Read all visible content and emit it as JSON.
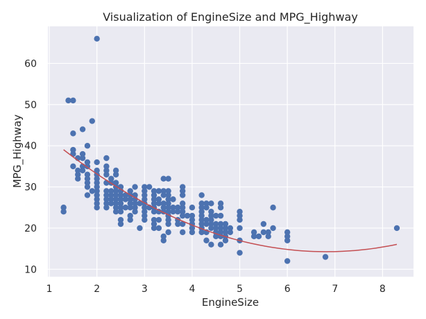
{
  "chart_data": {
    "type": "scatter",
    "title": "Visualization of EngineSize and MPG_Highway",
    "xlabel": "EngineSize",
    "ylabel": "MPG_Highway",
    "xlim": [
      0.97,
      8.65
    ],
    "ylim": [
      8.2,
      69.0
    ],
    "xticks": [
      1,
      2,
      3,
      4,
      5,
      6,
      7,
      8
    ],
    "yticks": [
      10,
      20,
      30,
      40,
      50,
      60
    ],
    "grid": true,
    "colors": {
      "points": "#4c72b0",
      "fit": "#c44e52",
      "plot_bg": "#eaeaf2",
      "grid": "#ffffff"
    },
    "points": [
      [
        1.3,
        25
      ],
      [
        1.3,
        24
      ],
      [
        1.4,
        51
      ],
      [
        1.5,
        51
      ],
      [
        1.5,
        43
      ],
      [
        1.5,
        39
      ],
      [
        1.5,
        38
      ],
      [
        1.5,
        35
      ],
      [
        1.6,
        37
      ],
      [
        1.6,
        34
      ],
      [
        1.6,
        33
      ],
      [
        1.6,
        32
      ],
      [
        1.7,
        44
      ],
      [
        1.7,
        38
      ],
      [
        1.7,
        37
      ],
      [
        1.7,
        35
      ],
      [
        1.7,
        34
      ],
      [
        1.8,
        40
      ],
      [
        1.8,
        36
      ],
      [
        1.8,
        35
      ],
      [
        1.8,
        33
      ],
      [
        1.8,
        32
      ],
      [
        1.8,
        31
      ],
      [
        1.8,
        30
      ],
      [
        1.8,
        28
      ],
      [
        1.9,
        46
      ],
      [
        1.9,
        29
      ],
      [
        2.0,
        66
      ],
      [
        2.0,
        36
      ],
      [
        2.0,
        34
      ],
      [
        2.0,
        33
      ],
      [
        2.0,
        32
      ],
      [
        2.0,
        31
      ],
      [
        2.0,
        30
      ],
      [
        2.0,
        29
      ],
      [
        2.0,
        28
      ],
      [
        2.0,
        27
      ],
      [
        2.0,
        26
      ],
      [
        2.0,
        25
      ],
      [
        2.2,
        37
      ],
      [
        2.2,
        35
      ],
      [
        2.2,
        34
      ],
      [
        2.2,
        33
      ],
      [
        2.2,
        31
      ],
      [
        2.2,
        29
      ],
      [
        2.2,
        28
      ],
      [
        2.2,
        27
      ],
      [
        2.2,
        26
      ],
      [
        2.2,
        25
      ],
      [
        2.3,
        32
      ],
      [
        2.3,
        31
      ],
      [
        2.3,
        29
      ],
      [
        2.3,
        28
      ],
      [
        2.3,
        27
      ],
      [
        2.3,
        26
      ],
      [
        2.4,
        34
      ],
      [
        2.4,
        33
      ],
      [
        2.4,
        31
      ],
      [
        2.4,
        30
      ],
      [
        2.4,
        29
      ],
      [
        2.4,
        28
      ],
      [
        2.4,
        27
      ],
      [
        2.4,
        26
      ],
      [
        2.4,
        25
      ],
      [
        2.4,
        24
      ],
      [
        2.5,
        30
      ],
      [
        2.5,
        29
      ],
      [
        2.5,
        28
      ],
      [
        2.5,
        27
      ],
      [
        2.5,
        26
      ],
      [
        2.5,
        25
      ],
      [
        2.5,
        24
      ],
      [
        2.5,
        22
      ],
      [
        2.5,
        21
      ],
      [
        2.6,
        28
      ],
      [
        2.6,
        27
      ],
      [
        2.6,
        25
      ],
      [
        2.7,
        29
      ],
      [
        2.7,
        28
      ],
      [
        2.7,
        27
      ],
      [
        2.7,
        26
      ],
      [
        2.7,
        25
      ],
      [
        2.7,
        23
      ],
      [
        2.7,
        22
      ],
      [
        2.8,
        30
      ],
      [
        2.8,
        28
      ],
      [
        2.8,
        27
      ],
      [
        2.8,
        26
      ],
      [
        2.8,
        25
      ],
      [
        2.8,
        24
      ],
      [
        2.9,
        26
      ],
      [
        2.9,
        20
      ],
      [
        3.0,
        30
      ],
      [
        3.0,
        29
      ],
      [
        3.0,
        28
      ],
      [
        3.0,
        27
      ],
      [
        3.0,
        26
      ],
      [
        3.0,
        25
      ],
      [
        3.0,
        24
      ],
      [
        3.0,
        23
      ],
      [
        3.0,
        22
      ],
      [
        3.1,
        30
      ],
      [
        3.1,
        25
      ],
      [
        3.2,
        29
      ],
      [
        3.2,
        28
      ],
      [
        3.2,
        27
      ],
      [
        3.2,
        26
      ],
      [
        3.2,
        25
      ],
      [
        3.2,
        24
      ],
      [
        3.2,
        22
      ],
      [
        3.2,
        21
      ],
      [
        3.2,
        20
      ],
      [
        3.3,
        29
      ],
      [
        3.3,
        27
      ],
      [
        3.3,
        26
      ],
      [
        3.3,
        24
      ],
      [
        3.3,
        22
      ],
      [
        3.3,
        20
      ],
      [
        3.4,
        32
      ],
      [
        3.4,
        29
      ],
      [
        3.4,
        28
      ],
      [
        3.4,
        26
      ],
      [
        3.4,
        25
      ],
      [
        3.4,
        24
      ],
      [
        3.4,
        18
      ],
      [
        3.4,
        17
      ],
      [
        3.5,
        32
      ],
      [
        3.5,
        29
      ],
      [
        3.5,
        28
      ],
      [
        3.5,
        27
      ],
      [
        3.5,
        26
      ],
      [
        3.5,
        25
      ],
      [
        3.5,
        24
      ],
      [
        3.5,
        23
      ],
      [
        3.5,
        22
      ],
      [
        3.5,
        21
      ],
      [
        3.5,
        19
      ],
      [
        3.6,
        27
      ],
      [
        3.6,
        25
      ],
      [
        3.6,
        24
      ],
      [
        3.7,
        25
      ],
      [
        3.7,
        24
      ],
      [
        3.7,
        22
      ],
      [
        3.7,
        21
      ],
      [
        3.8,
        30
      ],
      [
        3.8,
        29
      ],
      [
        3.8,
        28
      ],
      [
        3.8,
        26
      ],
      [
        3.8,
        25
      ],
      [
        3.8,
        24
      ],
      [
        3.8,
        23
      ],
      [
        3.8,
        21
      ],
      [
        3.8,
        19
      ],
      [
        3.9,
        23
      ],
      [
        4.0,
        25
      ],
      [
        4.0,
        23
      ],
      [
        4.0,
        22
      ],
      [
        4.0,
        21
      ],
      [
        4.0,
        20
      ],
      [
        4.0,
        19
      ],
      [
        4.2,
        28
      ],
      [
        4.2,
        26
      ],
      [
        4.2,
        25
      ],
      [
        4.2,
        24
      ],
      [
        4.2,
        23
      ],
      [
        4.2,
        22
      ],
      [
        4.2,
        21
      ],
      [
        4.2,
        20
      ],
      [
        4.2,
        19
      ],
      [
        4.3,
        26
      ],
      [
        4.3,
        25
      ],
      [
        4.3,
        22
      ],
      [
        4.3,
        21
      ],
      [
        4.3,
        19
      ],
      [
        4.3,
        17
      ],
      [
        4.4,
        26
      ],
      [
        4.4,
        24
      ],
      [
        4.4,
        23
      ],
      [
        4.4,
        22
      ],
      [
        4.4,
        21
      ],
      [
        4.4,
        20
      ],
      [
        4.4,
        16
      ],
      [
        4.5,
        23
      ],
      [
        4.5,
        21
      ],
      [
        4.5,
        20
      ],
      [
        4.5,
        19
      ],
      [
        4.5,
        18
      ],
      [
        4.6,
        26
      ],
      [
        4.6,
        25
      ],
      [
        4.6,
        23
      ],
      [
        4.6,
        21
      ],
      [
        4.6,
        20
      ],
      [
        4.6,
        19
      ],
      [
        4.6,
        18
      ],
      [
        4.6,
        16
      ],
      [
        4.7,
        21
      ],
      [
        4.7,
        20
      ],
      [
        4.7,
        19
      ],
      [
        4.7,
        18
      ],
      [
        4.7,
        17
      ],
      [
        4.8,
        20
      ],
      [
        4.8,
        19
      ],
      [
        5.0,
        24
      ],
      [
        5.0,
        23
      ],
      [
        5.0,
        22
      ],
      [
        5.0,
        20
      ],
      [
        5.0,
        17
      ],
      [
        5.0,
        14
      ],
      [
        5.3,
        19
      ],
      [
        5.3,
        18
      ],
      [
        5.4,
        18
      ],
      [
        5.5,
        21
      ],
      [
        5.5,
        19
      ],
      [
        5.6,
        19
      ],
      [
        5.6,
        18
      ],
      [
        5.7,
        25
      ],
      [
        5.7,
        20
      ],
      [
        6.0,
        19
      ],
      [
        6.0,
        18
      ],
      [
        6.0,
        17
      ],
      [
        6.0,
        12
      ],
      [
        6.8,
        13
      ],
      [
        8.3,
        20
      ]
    ],
    "fit": {
      "type": "quadratic",
      "x_range": [
        1.3,
        8.3
      ],
      "coefficients": [
        52.09,
        -11.09,
        0.813
      ]
    }
  }
}
